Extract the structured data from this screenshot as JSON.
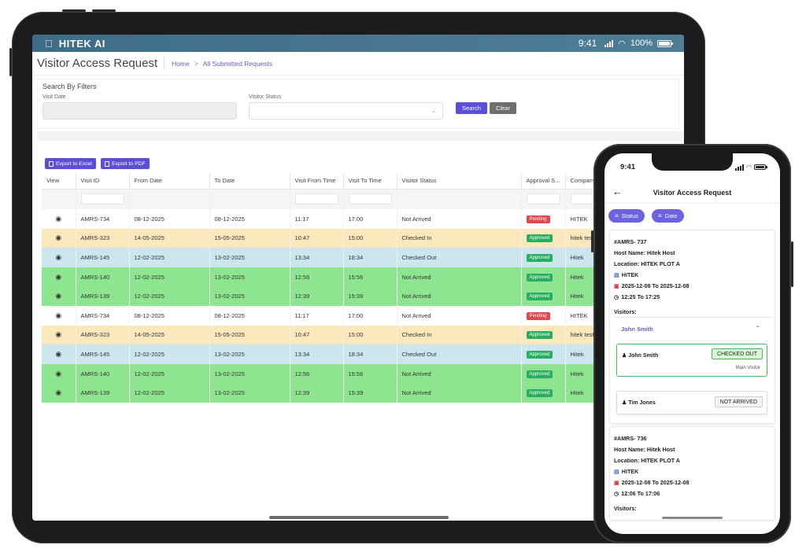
{
  "tablet": {
    "status_bar": {
      "brand": "HITEK AI",
      "time": "9:41",
      "battery": "100%"
    },
    "page_title": "Visitor Access Request",
    "breadcrumb": [
      "Home",
      ">",
      "All Submitted Requests"
    ],
    "filters": {
      "title": "Search By Filters",
      "visit_date_label": "Visit Date",
      "visitor_status_label": "Visitor Status",
      "search_label": "Search",
      "clear_label": "Clear"
    },
    "export_excel": "Export to Excel",
    "export_pdf": "Export to PDF",
    "columns": [
      "View",
      "Visit ID",
      "From Date",
      "To Date",
      "Visit From Time",
      "Visit To Time",
      "Visitor Status",
      "Approval S...",
      "Company"
    ],
    "rows": [
      {
        "id": "AMRS-734",
        "from": "08-12-2025",
        "to": "08-12-2025",
        "t_from": "11:17",
        "t_to": "17:00",
        "status": "Not Arrived",
        "approval": "Pending",
        "company": "HITEK",
        "color": "white"
      },
      {
        "id": "AMRS-323",
        "from": "14-05-2025",
        "to": "15-05-2025",
        "t_from": "10:47",
        "t_to": "15:00",
        "status": "Checked In",
        "approval": "Approved",
        "company": "hitek test",
        "color": "yellow"
      },
      {
        "id": "AMRS-145",
        "from": "12-02-2025",
        "to": "13-02-2025",
        "t_from": "13:34",
        "t_to": "18:34",
        "status": "Checked Out",
        "approval": "Approved",
        "company": "Hitek",
        "color": "blue"
      },
      {
        "id": "AMRS-140",
        "from": "12-02-2025",
        "to": "13-02-2025",
        "t_from": "12:56",
        "t_to": "15:56",
        "status": "Not Arrived",
        "approval": "Approved",
        "company": "Hitek",
        "color": "green"
      },
      {
        "id": "AMRS-139",
        "from": "12-02-2025",
        "to": "13-02-2025",
        "t_from": "12:39",
        "t_to": "15:39",
        "status": "Not Arrived",
        "approval": "Approved",
        "company": "Hitek",
        "color": "green"
      },
      {
        "id": "AMRS-734",
        "from": "08-12-2025",
        "to": "08-12-2025",
        "t_from": "11:17",
        "t_to": "17:00",
        "status": "Not Arrived",
        "approval": "Pending",
        "company": "HITEK",
        "color": "white"
      },
      {
        "id": "AMRS-323",
        "from": "14-05-2025",
        "to": "15-05-2025",
        "t_from": "10:47",
        "t_to": "15:00",
        "status": "Checked In",
        "approval": "Approved",
        "company": "hitek test",
        "color": "yellow"
      },
      {
        "id": "AMRS-145",
        "from": "12-02-2025",
        "to": "13-02-2025",
        "t_from": "13:34",
        "t_to": "18:34",
        "status": "Checked Out",
        "approval": "Approved",
        "company": "Hitek",
        "color": "blue"
      },
      {
        "id": "AMRS-140",
        "from": "12-02-2025",
        "to": "13-02-2025",
        "t_from": "12:56",
        "t_to": "15:56",
        "status": "Not Arrived",
        "approval": "Approved",
        "company": "Hitek",
        "color": "green"
      },
      {
        "id": "AMRS-139",
        "from": "12-02-2025",
        "to": "13-02-2025",
        "t_from": "12:39",
        "t_to": "15:39",
        "status": "Not Arrived",
        "approval": "Approved",
        "company": "Hitek",
        "color": "green"
      }
    ]
  },
  "phone": {
    "time": "9:41",
    "title": "Visitor Access Request",
    "chips": {
      "status": "Status",
      "date": "Date"
    },
    "card1": {
      "id": "#AMRS- 737",
      "host": "Host Name: Hitek Host",
      "location": "Location: HITEK PLOT A",
      "company": "HITEK",
      "dates": "2025-12-08 To 2025-12-08",
      "times": "12:25 To 17:25",
      "visitors_label": "Visitors:",
      "group_name": "John Smith",
      "visitors": [
        {
          "name": "John Smith",
          "status": "CHECKED OUT",
          "note": "Main Visitor"
        },
        {
          "name": "Tim Jones",
          "status": "NOT ARRIVED"
        }
      ]
    },
    "card2": {
      "id": "#AMRS- 736",
      "host": "Host Name: Hitek Host",
      "location": "Location: HITEK PLOT A",
      "company": "HITEK",
      "dates": "2025-12-08 To 2025-12-08",
      "times": "12:06 To 17:06",
      "visitors_label": "Visitors:"
    }
  },
  "colors": {
    "accent": "#5b4fd9",
    "row_yellow": "#fde7bd",
    "row_blue": "#cbe6ee",
    "row_green": "#8ee58f",
    "badge_pending": "#e2474e",
    "badge_approved": "#27ae60"
  }
}
